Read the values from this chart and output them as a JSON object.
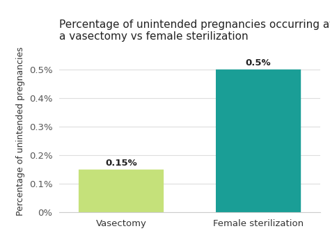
{
  "categories": [
    "Vasectomy",
    "Female sterilization"
  ],
  "values": [
    0.0015,
    0.005
  ],
  "bar_colors": [
    "#c5e17a",
    "#1a9e96"
  ],
  "value_labels": [
    "0.15%",
    "0.5%"
  ],
  "title_line1": "Percentage of unintended pregnancies occurring after",
  "title_line2": "a vasectomy vs female sterilization",
  "ylabel": "Percentage of unintended pregnancies",
  "ylim": [
    0,
    0.0057
  ],
  "yticks": [
    0,
    0.001,
    0.002,
    0.003,
    0.004,
    0.005
  ],
  "ytick_labels": [
    "0%",
    "0.1%",
    "0.2%",
    "0.3%",
    "0.4%",
    "0.5%"
  ],
  "background_color": "#ffffff",
  "title_fontsize": 11,
  "label_fontsize": 9,
  "tick_fontsize": 9.5,
  "bar_label_fontsize": 9.5,
  "bar_width": 0.62,
  "xlim": [
    -0.45,
    1.45
  ]
}
